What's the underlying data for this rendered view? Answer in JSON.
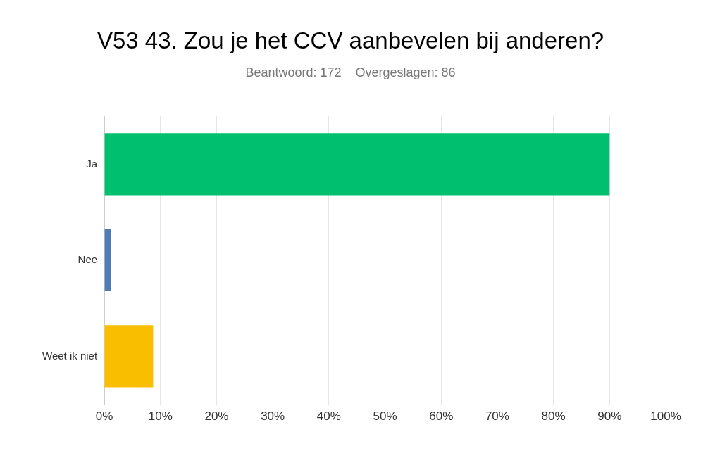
{
  "chart_data": {
    "type": "bar",
    "orientation": "horizontal",
    "title": "V53 43. Zou je het CCV aanbevelen bij anderen?",
    "subtitle": "Beantwoord: 172    Overgeslagen: 86",
    "categories": [
      "Ja",
      "Nee",
      "Weet ik niet"
    ],
    "values": [
      90,
      1.2,
      8.7
    ],
    "colors": [
      "#00bf6f",
      "#507cb6",
      "#f9be00"
    ],
    "xlim": [
      0,
      100
    ],
    "xticks": [
      {
        "value": 0,
        "label": "0%"
      },
      {
        "value": 10,
        "label": "10%"
      },
      {
        "value": 20,
        "label": "20%"
      },
      {
        "value": 30,
        "label": "30%"
      },
      {
        "value": 40,
        "label": "40%"
      },
      {
        "value": 50,
        "label": "50%"
      },
      {
        "value": 60,
        "label": "60%"
      },
      {
        "value": 70,
        "label": "70%"
      },
      {
        "value": 80,
        "label": "80%"
      },
      {
        "value": 90,
        "label": "90%"
      },
      {
        "value": 100,
        "label": "100%"
      }
    ],
    "grid": "x",
    "legend": false
  }
}
